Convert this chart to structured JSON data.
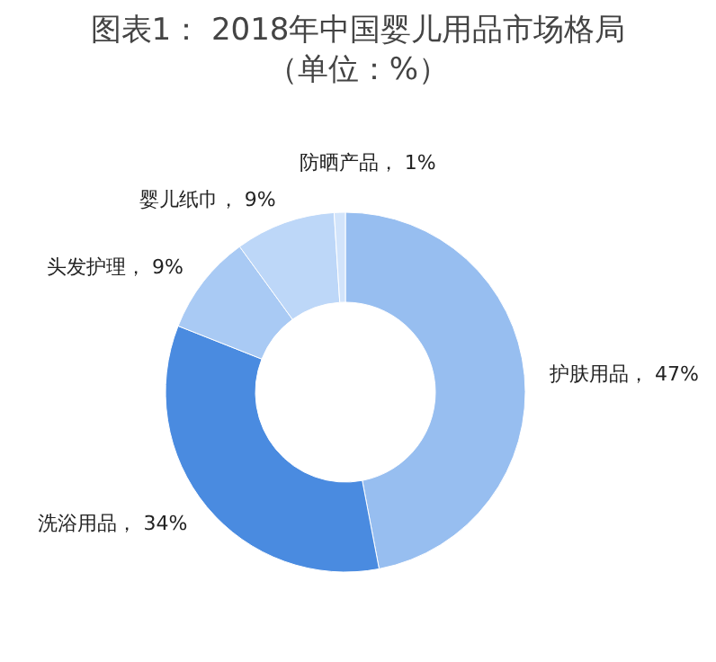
{
  "chart_data": {
    "type": "donut",
    "title": "图表1： 2018年中国婴儿用品市场格局（单位：%）",
    "categories": [
      "护肤用品",
      "洗浴用品",
      "头发护理",
      "婴儿纸巾",
      "防晒产品"
    ],
    "values": [
      47,
      34,
      9,
      9,
      1
    ],
    "colors": [
      "#97bef0",
      "#4a8be0",
      "#a9caf4",
      "#bdd7f8",
      "#d2e4fb"
    ],
    "value_labels": [
      "47%",
      "34%",
      "9%",
      "9%",
      "1%"
    ]
  }
}
